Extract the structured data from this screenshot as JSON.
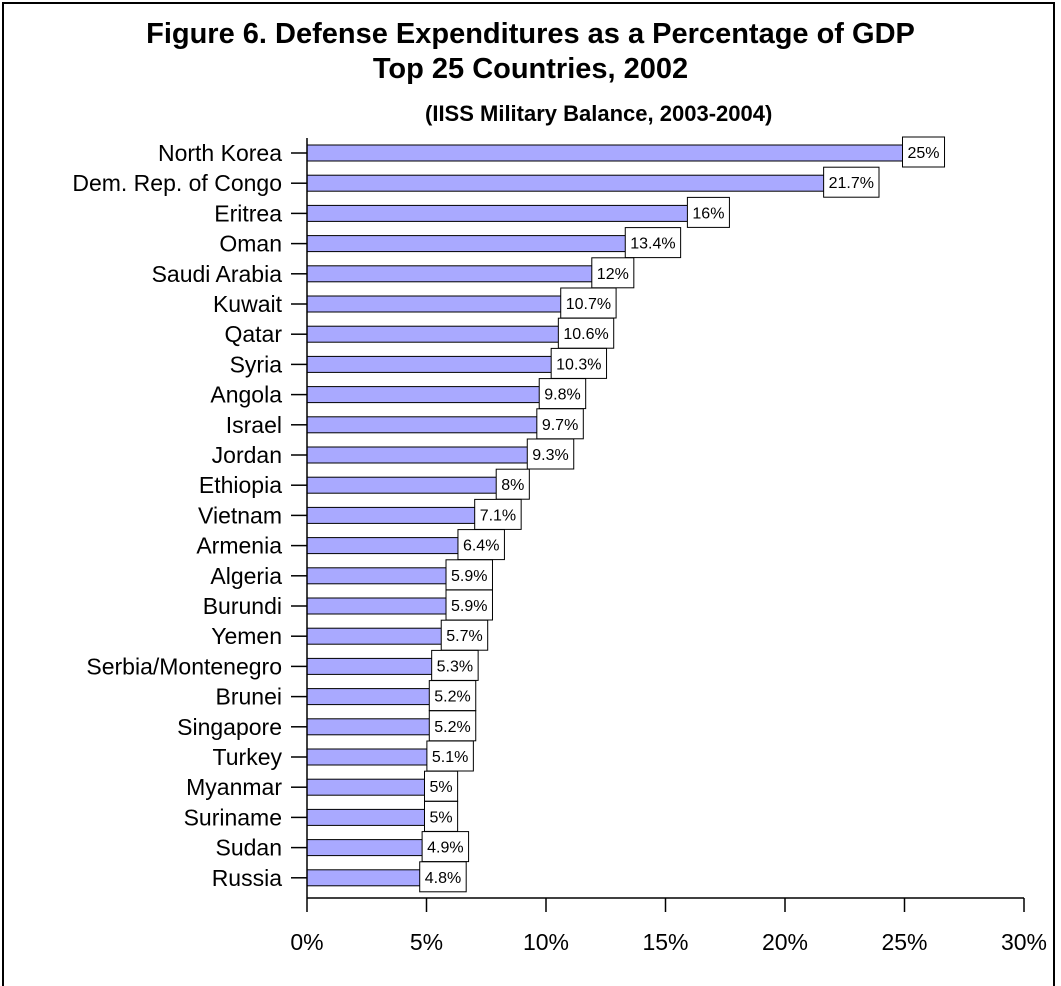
{
  "chart_data": {
    "type": "bar",
    "orientation": "horizontal",
    "title": "Figure 6. Defense Expenditures as a Percentage of GDP",
    "subtitle": "Top 25 Countries, 2002",
    "source_note": "(IISS Military Balance, 2003-2004)",
    "xlabel": "",
    "ylabel": "",
    "xlim": [
      0,
      30
    ],
    "x_ticks": [
      0,
      5,
      10,
      15,
      20,
      25,
      30
    ],
    "x_tick_labels": [
      "0%",
      "5%",
      "10%",
      "15%",
      "20%",
      "25%",
      "30%"
    ],
    "grid": false,
    "legend": "none",
    "bar_color": "#a9a9ff",
    "categories": [
      "North Korea",
      "Dem. Rep. of Congo",
      "Eritrea",
      "Oman",
      "Saudi Arabia",
      "Kuwait",
      "Qatar",
      "Syria",
      "Angola",
      "Israel",
      "Jordan",
      "Ethiopia",
      "Vietnam",
      "Armenia",
      "Algeria",
      "Burundi",
      "Yemen",
      "Serbia/Montenegro",
      "Brunei",
      "Singapore",
      "Turkey",
      "Myanmar",
      "Suriname",
      "Sudan",
      "Russia"
    ],
    "values": [
      25,
      21.7,
      16,
      13.4,
      12,
      10.7,
      10.6,
      10.3,
      9.8,
      9.7,
      9.3,
      8,
      7.1,
      6.4,
      5.9,
      5.9,
      5.7,
      5.3,
      5.2,
      5.2,
      5.1,
      5,
      5,
      4.9,
      4.8
    ],
    "data_labels": [
      "25%",
      "21.7%",
      "16%",
      "13.4%",
      "12%",
      "10.7%",
      "10.6%",
      "10.3%",
      "9.8%",
      "9.7%",
      "9.3%",
      "8%",
      "7.1%",
      "6.4%",
      "5.9%",
      "5.9%",
      "5.7%",
      "5.3%",
      "5.2%",
      "5.2%",
      "5.1%",
      "5%",
      "5%",
      "4.9%",
      "4.8%"
    ]
  }
}
